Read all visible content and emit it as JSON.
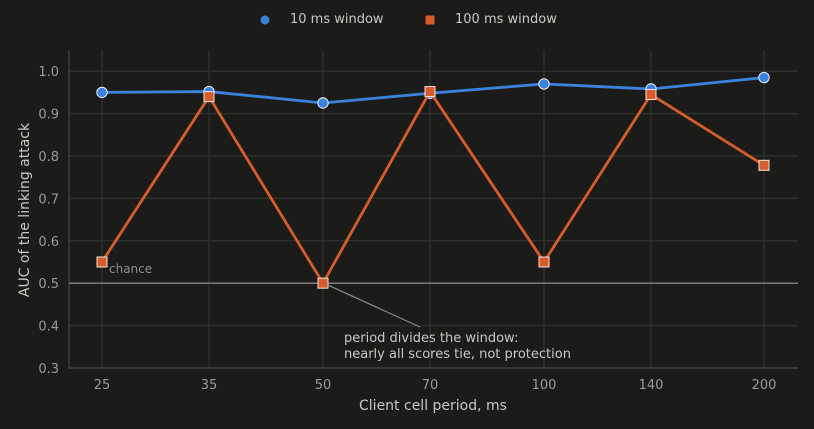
{
  "chart_data": {
    "type": "line",
    "categories": [
      "25",
      "35",
      "50",
      "70",
      "100",
      "140",
      "200"
    ],
    "series": [
      {
        "name": "10 ms window",
        "color": "#3b82dc",
        "marker": "circle",
        "values": [
          0.95,
          0.952,
          0.925,
          0.948,
          0.97,
          0.958,
          0.985
        ]
      },
      {
        "name": "100 ms window",
        "color": "#d75c2c",
        "marker": "square",
        "values": [
          0.55,
          0.94,
          0.5,
          0.952,
          0.55,
          0.945,
          0.778
        ]
      }
    ],
    "title": "",
    "xlabel": "Client cell period, ms",
    "ylabel": "AUC of the linking attack",
    "ylim": [
      0.3,
      1.05
    ],
    "yticks": [
      "0.3",
      "0.4",
      "0.5",
      "0.6",
      "0.7",
      "0.8",
      "0.9",
      "1.0"
    ],
    "grid": true,
    "legend_position": "top-center",
    "reference_line": {
      "value": 0.5,
      "label": "chance"
    },
    "annotation": {
      "target_category": "50",
      "target_value": 0.5,
      "lines": [
        "period divides the window:",
        "nearly all scores tie, not protection"
      ]
    }
  }
}
